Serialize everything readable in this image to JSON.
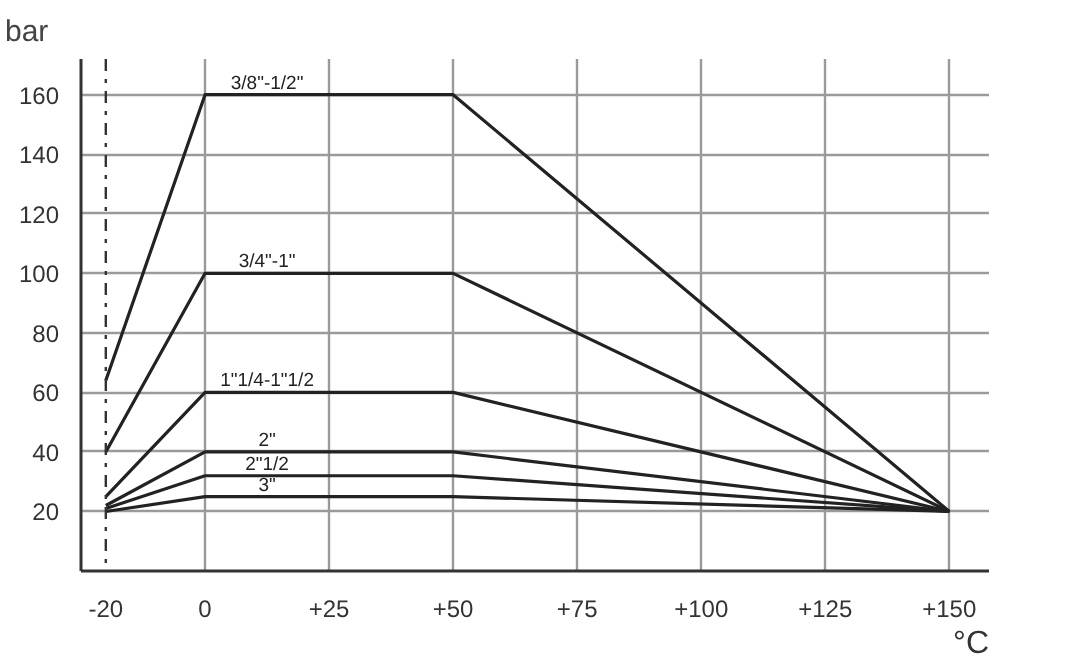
{
  "chart_data": {
    "type": "line",
    "xlabel": "°C",
    "ylabel": "bar",
    "xlim": [
      -25,
      158
    ],
    "ylim": [
      0,
      172
    ],
    "xticks": [
      {
        "value": -20,
        "label": "-20"
      },
      {
        "value": 0,
        "label": "0"
      },
      {
        "value": 25,
        "label": "+25"
      },
      {
        "value": 50,
        "label": "+50"
      },
      {
        "value": 75,
        "label": "+75"
      },
      {
        "value": 100,
        "label": "+100"
      },
      {
        "value": 125,
        "label": "+125"
      },
      {
        "value": 150,
        "label": "+150"
      }
    ],
    "yticks": [
      20,
      40,
      60,
      80,
      100,
      120,
      140,
      160
    ],
    "x": [
      -20,
      0,
      50,
      150
    ],
    "series": [
      {
        "name": "3/8\"-1/2\"",
        "color": "#222222",
        "values": [
          64,
          160,
          160,
          20
        ]
      },
      {
        "name": "3/4\"-1\"",
        "color": "#222222",
        "values": [
          40,
          100,
          100,
          20
        ]
      },
      {
        "name": "1\"1/4-1\"1/2",
        "color": "#222222",
        "values": [
          25,
          60,
          60,
          20
        ]
      },
      {
        "name": "2\"",
        "color": "#222222",
        "values": [
          22,
          40,
          40,
          20
        ]
      },
      {
        "name": "2\"1/2",
        "color": "#222222",
        "values": [
          21,
          32,
          32,
          20
        ]
      },
      {
        "name": "3\"",
        "color": "#222222",
        "values": [
          20,
          25,
          25,
          20
        ]
      }
    ],
    "ref_lines": [
      {
        "axis": "x",
        "value": -20,
        "line_style": "dashdot",
        "color": "#333333"
      }
    ],
    "grid": true,
    "marker": "none",
    "line_style": "solid"
  }
}
